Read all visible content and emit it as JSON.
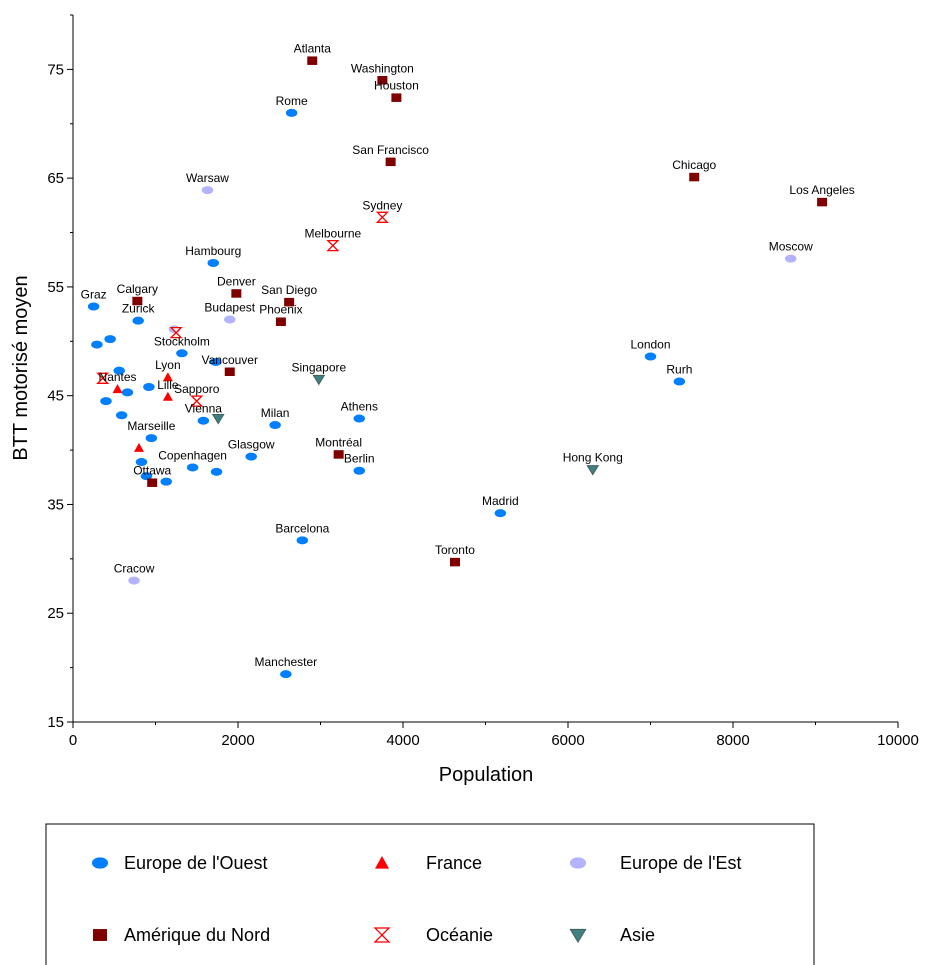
{
  "chart_data": {
    "type": "scatter",
    "title": "",
    "xlabel": "Population",
    "ylabel": "BTT motorisé moyen",
    "xlim": [
      0,
      10000
    ],
    "ylim": [
      15,
      80
    ],
    "xticks": [
      0,
      2000,
      4000,
      6000,
      8000,
      10000
    ],
    "yticks": [
      15,
      25,
      35,
      45,
      55,
      65,
      75
    ],
    "grid": false,
    "legend_position": "bottom",
    "series": [
      {
        "name": "Europe de l'Ouest",
        "marker": "ellipse",
        "color": "#0080ff",
        "points": [
          {
            "label": "Rome",
            "x": 2650,
            "y": 71
          },
          {
            "label": "Hambourg",
            "x": 1700,
            "y": 57.2
          },
          {
            "label": "Graz",
            "x": 250,
            "y": 53.2
          },
          {
            "label": "Zurick",
            "x": 790,
            "y": 51.9
          },
          {
            "label": "Stockholm",
            "x": 1320,
            "y": 48.9
          },
          {
            "label": "London",
            "x": 7000,
            "y": 48.6
          },
          {
            "label": "Rurh",
            "x": 7350,
            "y": 46.3
          },
          {
            "label": "Vienna",
            "x": 1580,
            "y": 42.7
          },
          {
            "label": "Milan",
            "x": 2450,
            "y": 42.3
          },
          {
            "label": "Athens",
            "x": 3470,
            "y": 42.9
          },
          {
            "label": "Marseille",
            "x": 950,
            "y": 41.1
          },
          {
            "label": "Glasgow",
            "x": 2160,
            "y": 39.4
          },
          {
            "label": "Copenhagen",
            "x": 1450,
            "y": 38.4
          },
          {
            "label": "Berlin",
            "x": 3470,
            "y": 38.1
          },
          {
            "label": "Madrid",
            "x": 5180,
            "y": 34.2
          },
          {
            "label": "Barcelona",
            "x": 2780,
            "y": 31.7
          },
          {
            "label": "Manchester",
            "x": 2580,
            "y": 19.4
          },
          {
            "label": "",
            "x": 290,
            "y": 49.7
          },
          {
            "label": "",
            "x": 450,
            "y": 50.2
          },
          {
            "label": "",
            "x": 560,
            "y": 47.3
          },
          {
            "label": "",
            "x": 660,
            "y": 45.3
          },
          {
            "label": "",
            "x": 400,
            "y": 44.5
          },
          {
            "label": "",
            "x": 590,
            "y": 43.2
          },
          {
            "label": "",
            "x": 920,
            "y": 45.8
          },
          {
            "label": "",
            "x": 1730,
            "y": 48.1
          },
          {
            "label": "",
            "x": 830,
            "y": 38.9
          },
          {
            "label": "",
            "x": 890,
            "y": 37.6
          },
          {
            "label": "",
            "x": 1130,
            "y": 37.1
          },
          {
            "label": "",
            "x": 1740,
            "y": 38
          }
        ]
      },
      {
        "name": "France",
        "marker": "triangle-up",
        "color": "#ff0000",
        "points": [
          {
            "label": "Lyon",
            "x": 1150,
            "y": 46.7
          },
          {
            "label": "Lille",
            "x": 1150,
            "y": 44.9
          },
          {
            "label": "Nantes",
            "x": 540,
            "y": 45.6
          },
          {
            "label": "",
            "x": 800,
            "y": 40.2
          }
        ]
      },
      {
        "name": "Europe de l'Est",
        "marker": "ellipse",
        "color": "#b3b3ff",
        "points": [
          {
            "label": "Warsaw",
            "x": 1630,
            "y": 63.9
          },
          {
            "label": "Moscow",
            "x": 8700,
            "y": 57.6
          },
          {
            "label": "Budapest",
            "x": 1900,
            "y": 52
          },
          {
            "label": "Cracow",
            "x": 740,
            "y": 28
          },
          {
            "label": "",
            "x": 1230,
            "y": 51.1
          }
        ]
      },
      {
        "name": "Amérique du Nord",
        "marker": "square",
        "color": "#800000",
        "points": [
          {
            "label": "Atlanta",
            "x": 2900,
            "y": 75.8
          },
          {
            "label": "Washington",
            "x": 3750,
            "y": 74
          },
          {
            "label": "Houston",
            "x": 3920,
            "y": 72.4
          },
          {
            "label": "San Francisco",
            "x": 3850,
            "y": 66.5
          },
          {
            "label": "Chicago",
            "x": 7530,
            "y": 65.1
          },
          {
            "label": "Los Angeles",
            "x": 9080,
            "y": 62.8
          },
          {
            "label": "Denver",
            "x": 1980,
            "y": 54.4
          },
          {
            "label": "Calgary",
            "x": 780,
            "y": 53.7
          },
          {
            "label": "San Diego",
            "x": 2620,
            "y": 53.6
          },
          {
            "label": "Phoenix",
            "x": 2520,
            "y": 51.8
          },
          {
            "label": "Vancouver",
            "x": 1900,
            "y": 47.2
          },
          {
            "label": "Montréal",
            "x": 3220,
            "y": 39.6
          },
          {
            "label": "Ottawa",
            "x": 960,
            "y": 37
          },
          {
            "label": "Toronto",
            "x": 4630,
            "y": 29.7
          }
        ]
      },
      {
        "name": "Océanie",
        "marker": "hourglass",
        "color": "#ff0000",
        "points": [
          {
            "label": "Sydney",
            "x": 3750,
            "y": 61.4
          },
          {
            "label": "Melbourne",
            "x": 3150,
            "y": 58.8
          },
          {
            "label": "Sapporo",
            "x": 1500,
            "y": 44.5
          },
          {
            "label": "",
            "x": 1250,
            "y": 50.8
          },
          {
            "label": "",
            "x": 360,
            "y": 46.6
          }
        ]
      },
      {
        "name": "Asie",
        "marker": "triangle-down",
        "color": "#408080",
        "points": [
          {
            "label": "Singapore",
            "x": 2980,
            "y": 46.5
          },
          {
            "label": "Hong Kong",
            "x": 6300,
            "y": 38.2
          },
          {
            "label": "",
            "x": 1760,
            "y": 42.9
          }
        ]
      }
    ]
  }
}
